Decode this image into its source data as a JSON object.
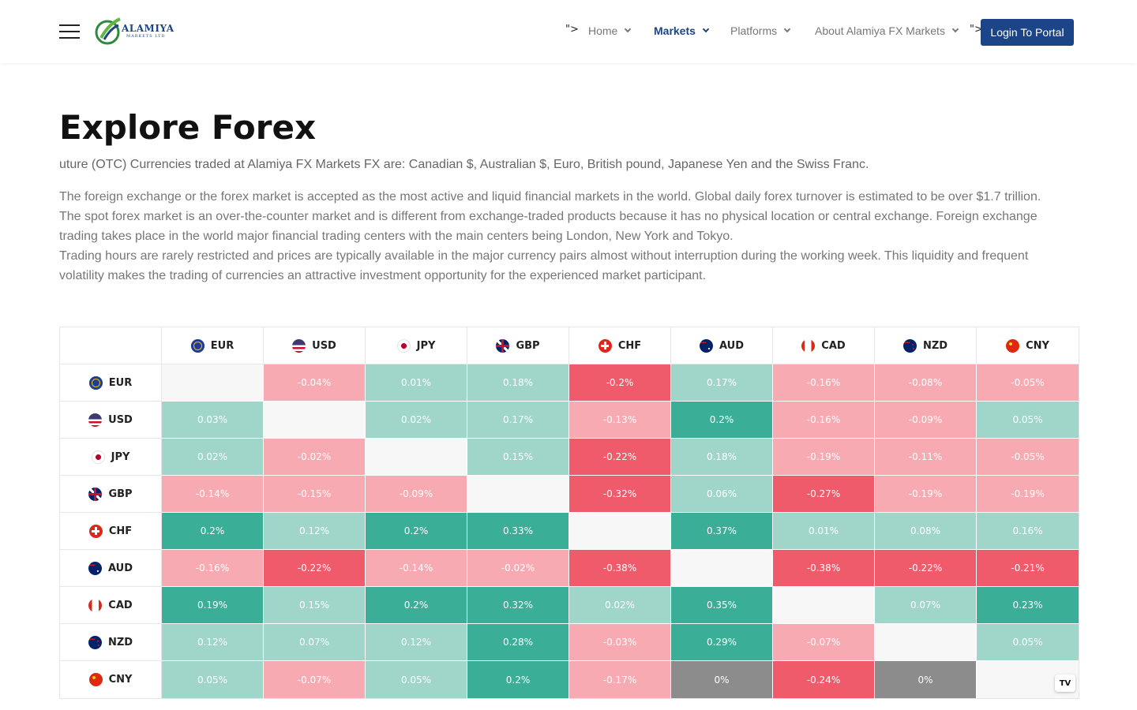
{
  "header": {
    "logo_text": "ALAMIYA",
    "logo_sub": "MARKETS LTD",
    "stray_fragment": "\">",
    "nav": [
      {
        "label": "Home"
      },
      {
        "label": "Markets"
      },
      {
        "label": "Platforms"
      },
      {
        "label": "About Alamiya FX Markets"
      }
    ],
    "login_label": "Login To Portal"
  },
  "main": {
    "title": "Explore Forex",
    "subtitle": "uture (OTC) Currencies traded at Alamiya FX Markets FX are: Canadian $, Australian $, Euro, British pound, Japanese Yen and the Swiss Franc.",
    "paragraph_1": "The foreign exchange or the forex market is accepted as the most active and liquid financial markets in the world. Global daily forex turnover is estimated to be over $1.7 trillion. The spot forex market is an over-the-counter market and is different from exchange-traded products because it has no physical location or central exchange. Foreign exchange trading takes place in the world major financial trading centers with the main centers being London, New York and Tokyo.",
    "paragraph_2": "Trading hours are rarely restricted and prices are typically available in the major currency pairs almost without interruption during the working week. This liquidity and frequent volatility makes the trading of currencies an attractive investment opportunity for the experienced market participant."
  },
  "colors": {
    "brand": "#1c4587",
    "strong_up": "#3aae96",
    "mild_up": "#9fd6c9",
    "strong_down": "#ef5b6b",
    "mild_down": "#f7aab2",
    "flat": "#8c8c8c",
    "empty": "#f7f7f7"
  },
  "heatmap": {
    "badge": "TV",
    "currencies": [
      {
        "code": "EUR",
        "icon": "eu-flag-icon"
      },
      {
        "code": "USD",
        "icon": "us-flag-icon"
      },
      {
        "code": "JPY",
        "icon": "jp-flag-icon"
      },
      {
        "code": "GBP",
        "icon": "gb-flag-icon"
      },
      {
        "code": "CHF",
        "icon": "ch-flag-icon"
      },
      {
        "code": "AUD",
        "icon": "au-flag-icon"
      },
      {
        "code": "CAD",
        "icon": "ca-flag-icon"
      },
      {
        "code": "NZD",
        "icon": "nz-flag-icon"
      },
      {
        "code": "CNY",
        "icon": "cn-flag-icon"
      }
    ],
    "rows": [
      [
        null,
        "-0.04%",
        "0.01%",
        "0.18%",
        "-0.2%",
        "0.17%",
        "-0.16%",
        "-0.08%",
        "-0.05%"
      ],
      [
        "0.03%",
        null,
        "0.02%",
        "0.17%",
        "-0.13%",
        "0.2%",
        "-0.16%",
        "-0.09%",
        "0.05%"
      ],
      [
        "0.02%",
        "-0.02%",
        null,
        "0.15%",
        "-0.22%",
        "0.18%",
        "-0.19%",
        "-0.11%",
        "-0.05%"
      ],
      [
        "-0.14%",
        "-0.15%",
        "-0.09%",
        null,
        "-0.32%",
        "0.06%",
        "-0.27%",
        "-0.19%",
        "-0.19%"
      ],
      [
        "0.2%",
        "0.12%",
        "0.2%",
        "0.33%",
        null,
        "0.37%",
        "0.01%",
        "0.08%",
        "0.16%"
      ],
      [
        "-0.16%",
        "-0.22%",
        "-0.14%",
        "-0.02%",
        "-0.38%",
        null,
        "-0.38%",
        "-0.22%",
        "-0.21%"
      ],
      [
        "0.19%",
        "0.15%",
        "0.2%",
        "0.32%",
        "0.02%",
        "0.35%",
        null,
        "0.07%",
        "0.23%"
      ],
      [
        "0.12%",
        "0.07%",
        "0.12%",
        "0.28%",
        "-0.03%",
        "0.29%",
        "-0.07%",
        null,
        "0.05%"
      ],
      [
        "0.05%",
        "-0.07%",
        "0.05%",
        "0.2%",
        "-0.17%",
        "0%",
        "-0.24%",
        "0%",
        null
      ]
    ],
    "shades": [
      [
        "empty",
        "mild_down",
        "mild_up",
        "mild_up",
        "strong_down",
        "mild_up",
        "mild_down",
        "mild_down",
        "mild_down"
      ],
      [
        "mild_up",
        "empty",
        "mild_up",
        "mild_up",
        "mild_down",
        "strong_up",
        "mild_down",
        "mild_down",
        "mild_up"
      ],
      [
        "mild_up",
        "mild_down",
        "empty",
        "mild_up",
        "strong_down",
        "mild_up",
        "mild_down",
        "mild_down",
        "mild_down"
      ],
      [
        "mild_down",
        "mild_down",
        "mild_down",
        "empty",
        "strong_down",
        "mild_up",
        "strong_down",
        "mild_down",
        "mild_down"
      ],
      [
        "strong_up",
        "mild_up",
        "strong_up",
        "strong_up",
        "empty",
        "strong_up",
        "mild_up",
        "mild_up",
        "mild_up"
      ],
      [
        "mild_down",
        "strong_down",
        "mild_down",
        "mild_down",
        "strong_down",
        "empty",
        "strong_down",
        "strong_down",
        "strong_down"
      ],
      [
        "strong_up",
        "mild_up",
        "strong_up",
        "strong_up",
        "mild_up",
        "strong_up",
        "empty",
        "mild_up",
        "strong_up"
      ],
      [
        "mild_up",
        "mild_up",
        "mild_up",
        "strong_up",
        "mild_down",
        "strong_up",
        "mild_down",
        "empty",
        "mild_up"
      ],
      [
        "mild_up",
        "mild_down",
        "mild_up",
        "strong_up",
        "mild_down",
        "flat",
        "strong_down",
        "flat",
        "empty"
      ]
    ]
  }
}
